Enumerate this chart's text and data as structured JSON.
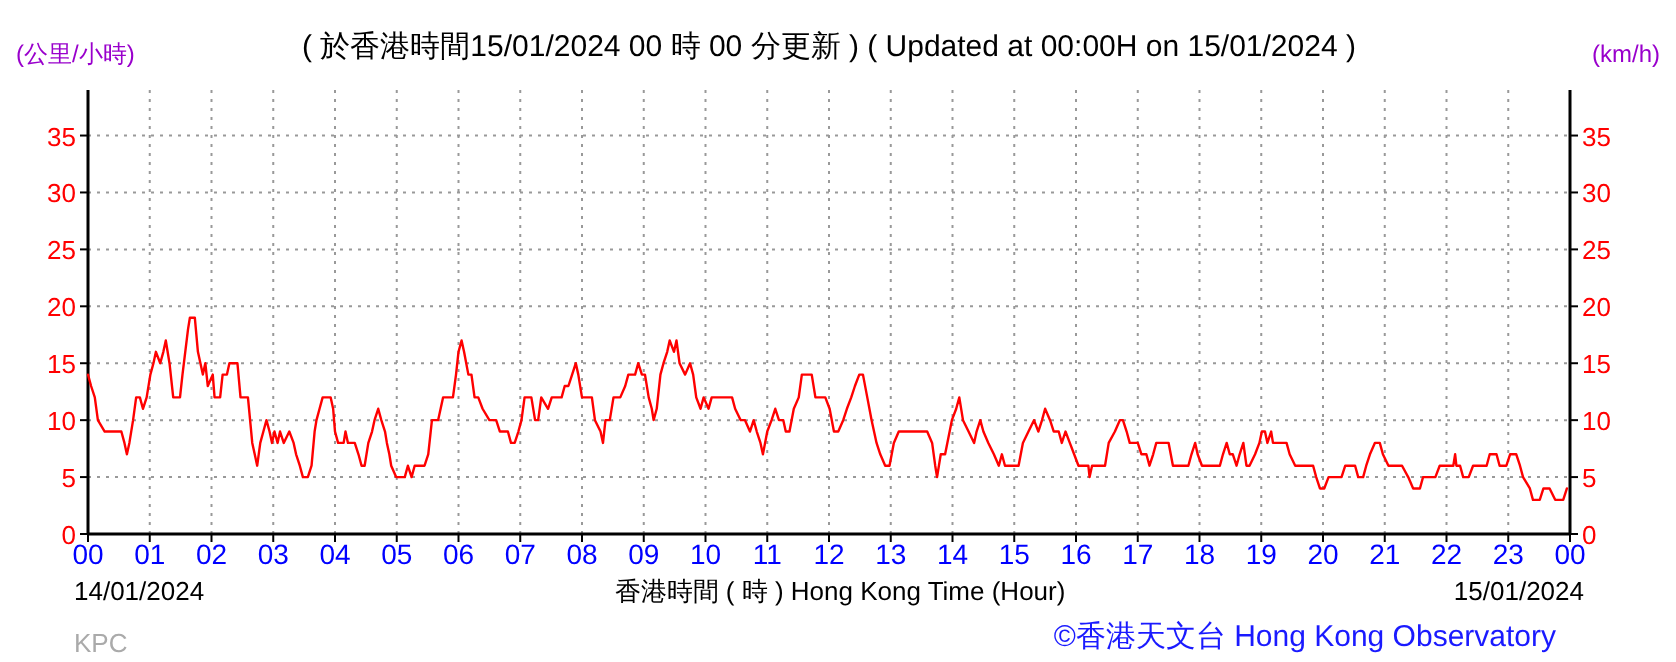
{
  "chart_data": {
    "type": "line",
    "title": "( 於香港時間15/01/2024 00 時 00 分更新 ) ( Updated at 00:00H on 15/01/2024 )",
    "xlabel": "香港時間 ( 時 ) Hong Kong Time (Hour)",
    "ylabel": "(公里/小時)",
    "y2label": "(km/h)",
    "annotations": [
      "14/01/2024",
      "15/01/2024",
      "KPC",
      "©香港天文台 Hong Kong Observatory"
    ],
    "xlim": [
      0,
      24
    ],
    "ylim": [
      0,
      39
    ],
    "y2lim": [
      0,
      39
    ],
    "xticks": [
      {
        "value": 0,
        "label": "00"
      },
      {
        "value": 1,
        "label": "01"
      },
      {
        "value": 2,
        "label": "02"
      },
      {
        "value": 3,
        "label": "03"
      },
      {
        "value": 4,
        "label": "04"
      },
      {
        "value": 5,
        "label": "05"
      },
      {
        "value": 6,
        "label": "06"
      },
      {
        "value": 7,
        "label": "07"
      },
      {
        "value": 8,
        "label": "08"
      },
      {
        "value": 9,
        "label": "09"
      },
      {
        "value": 10,
        "label": "10"
      },
      {
        "value": 11,
        "label": "11"
      },
      {
        "value": 12,
        "label": "12"
      },
      {
        "value": 13,
        "label": "13"
      },
      {
        "value": 14,
        "label": "14"
      },
      {
        "value": 15,
        "label": "15"
      },
      {
        "value": 16,
        "label": "16"
      },
      {
        "value": 17,
        "label": "17"
      },
      {
        "value": 18,
        "label": "18"
      },
      {
        "value": 19,
        "label": "19"
      },
      {
        "value": 20,
        "label": "20"
      },
      {
        "value": 21,
        "label": "21"
      },
      {
        "value": 22,
        "label": "22"
      },
      {
        "value": 23,
        "label": "23"
      },
      {
        "value": 24,
        "label": "00"
      }
    ],
    "yticks": [
      0,
      5,
      10,
      15,
      20,
      25,
      30,
      35
    ],
    "y2ticks": [
      0,
      5,
      10,
      15,
      20,
      25,
      30,
      35
    ],
    "grid": true,
    "series": [
      {
        "color": "#ff0000",
        "x": [
          0,
          0.05,
          0.11,
          0.16,
          0.27,
          0.54,
          0.59,
          0.63,
          0.67,
          0.73,
          0.78,
          0.84,
          0.89,
          0.95,
          1.01,
          1.06,
          1.1,
          1.17,
          1.22,
          1.26,
          1.32,
          1.38,
          1.49,
          1.53,
          1.62,
          1.65,
          1.73,
          1.78,
          1.86,
          1.9,
          1.94,
          2.02,
          2.05,
          2.14,
          2.18,
          2.25,
          2.29,
          2.42,
          2.47,
          2.59,
          2.66,
          2.7,
          2.74,
          2.79,
          2.84,
          2.89,
          2.94,
          2.98,
          3.02,
          3.07,
          3.11,
          3.17,
          3.26,
          3.33,
          3.37,
          3.43,
          3.48,
          3.56,
          3.62,
          3.67,
          3.7,
          3.75,
          3.8,
          3.93,
          3.97,
          4.0,
          4.05,
          4.14,
          4.17,
          4.21,
          4.32,
          4.38,
          4.43,
          4.48,
          4.54,
          4.6,
          4.64,
          4.7,
          4.75,
          4.81,
          4.84,
          4.88,
          4.91,
          4.99,
          5.13,
          5.18,
          5.24,
          5.29,
          5.45,
          5.51,
          5.57,
          5.67,
          5.75,
          5.91,
          5.96,
          6.0,
          6.05,
          6.09,
          6.16,
          6.21,
          6.26,
          6.32,
          6.39,
          6.5,
          6.61,
          6.67,
          6.8,
          6.85,
          6.91,
          6.97,
          7.02,
          7.07,
          7.18,
          7.24,
          7.29,
          7.34,
          7.45,
          7.51,
          7.67,
          7.72,
          7.78,
          7.84,
          7.9,
          7.94,
          8.0,
          8.16,
          8.21,
          8.3,
          8.34,
          8.38,
          8.45,
          8.51,
          8.62,
          8.7,
          8.75,
          8.86,
          8.91,
          8.97,
          9.02,
          9.08,
          9.13,
          9.16,
          9.21,
          9.27,
          9.32,
          9.38,
          9.42,
          9.49,
          9.53,
          9.58,
          9.67,
          9.75,
          9.8,
          9.85,
          9.92,
          9.97,
          10.05,
          10.1,
          10.43,
          10.48,
          10.57,
          10.64,
          10.72,
          10.78,
          10.83,
          10.89,
          10.93,
          11.0,
          11.07,
          11.13,
          11.19,
          11.26,
          11.3,
          11.36,
          11.43,
          11.51,
          11.56,
          11.72,
          11.78,
          11.94,
          12.01,
          12.08,
          12.15,
          12.23,
          12.29,
          12.36,
          12.42,
          12.49,
          12.55,
          12.62,
          12.69,
          12.77,
          12.83,
          12.91,
          12.98,
          13.05,
          13.13,
          13.59,
          13.67,
          13.72,
          13.75,
          13.81,
          13.88,
          13.99,
          14.06,
          14.11,
          14.17,
          14.26,
          14.35,
          14.39,
          14.45,
          14.5,
          14.58,
          14.67,
          14.75,
          14.8,
          14.85,
          15.07,
          15.14,
          15.23,
          15.32,
          15.39,
          15.45,
          15.5,
          15.58,
          15.64,
          15.72,
          15.77,
          15.83,
          15.9,
          15.97,
          16.04,
          16.2,
          16.22,
          16.26,
          16.47,
          16.53,
          16.63,
          16.71,
          16.76,
          16.82,
          16.87,
          17.0,
          17.06,
          17.14,
          17.19,
          17.25,
          17.3,
          17.5,
          17.57,
          17.82,
          17.87,
          17.93,
          17.97,
          18.04,
          18.33,
          18.38,
          18.44,
          18.49,
          18.54,
          18.6,
          18.65,
          18.71,
          18.76,
          18.81,
          18.9,
          18.97,
          19.01,
          19.06,
          19.1,
          19.16,
          19.19,
          19.41,
          19.46,
          19.55,
          19.84,
          19.89,
          19.95,
          20.02,
          20.09,
          20.3,
          20.36,
          20.52,
          20.57,
          20.65,
          20.7,
          20.76,
          20.84,
          20.92,
          20.97,
          21.06,
          21.28,
          21.38,
          21.46,
          21.57,
          21.62,
          21.82,
          21.89,
          22.11,
          22.14,
          22.16,
          22.22,
          22.27,
          22.36,
          22.43,
          22.65,
          22.7,
          22.81,
          22.86,
          22.97,
          23.03,
          23.13,
          23.19,
          23.24,
          23.35,
          23.4,
          23.51,
          23.57,
          23.67,
          23.76,
          23.89,
          23.95
        ],
        "values": [
          14,
          13,
          12,
          10,
          9,
          9,
          8,
          7,
          8,
          10,
          12,
          12,
          11,
          12,
          14,
          15,
          16,
          15,
          16,
          17,
          15,
          12,
          12,
          14,
          18,
          19,
          19,
          16,
          14,
          15,
          13,
          14,
          12,
          12,
          14,
          14,
          15,
          15,
          12,
          12,
          8,
          7,
          6,
          8,
          9,
          10,
          9,
          8,
          9,
          8,
          9,
          8,
          9,
          8,
          7,
          6,
          5,
          5,
          6,
          9,
          10,
          11,
          12,
          12,
          11,
          9,
          8,
          8,
          9,
          8,
          8,
          7,
          6,
          6,
          8,
          9,
          10,
          11,
          10,
          9,
          8,
          7,
          6,
          5,
          5,
          6,
          5,
          6,
          6,
          7,
          10,
          10,
          12,
          12,
          14,
          16,
          17,
          16,
          14,
          14,
          12,
          12,
          11,
          10,
          10,
          9,
          9,
          8,
          8,
          9,
          10,
          12,
          12,
          10,
          10,
          12,
          11,
          12,
          12,
          13,
          13,
          14,
          15,
          14,
          12,
          12,
          10,
          9,
          8,
          10,
          10,
          12,
          12,
          13,
          14,
          14,
          15,
          14,
          14,
          12,
          11,
          10,
          11,
          14,
          15,
          16,
          17,
          16,
          17,
          15,
          14,
          15,
          14,
          12,
          11,
          12,
          11,
          12,
          12,
          11,
          10,
          10,
          9,
          10,
          9,
          8,
          7,
          9,
          10,
          11,
          10,
          10,
          9,
          9,
          11,
          12,
          14,
          14,
          12,
          12,
          11,
          9,
          9,
          10,
          11,
          12,
          13,
          14,
          14,
          12,
          10,
          8,
          7,
          6,
          6,
          8,
          9,
          9,
          8,
          6,
          5,
          7,
          7,
          10,
          11,
          12,
          10,
          9,
          8,
          9,
          10,
          9,
          8,
          7,
          6,
          7,
          6,
          6,
          8,
          9,
          10,
          9,
          10,
          11,
          10,
          9,
          9,
          8,
          9,
          8,
          7,
          6,
          6,
          5,
          6,
          6,
          8,
          9,
          10,
          10,
          9,
          8,
          8,
          7,
          7,
          6,
          7,
          8,
          8,
          6,
          6,
          7,
          8,
          7,
          6,
          6,
          7,
          8,
          7,
          7,
          6,
          7,
          8,
          6,
          6,
          7,
          8,
          9,
          9,
          8,
          9,
          8,
          8,
          7,
          6,
          6,
          5,
          4,
          4,
          5,
          5,
          6,
          6,
          5,
          5,
          6,
          7,
          8,
          8,
          7,
          6,
          6,
          5,
          4,
          4,
          5,
          5,
          6,
          6,
          7,
          6,
          6,
          5,
          5,
          6,
          6,
          7,
          7,
          6,
          6,
          7,
          7,
          6,
          5,
          4,
          3,
          3,
          4,
          4,
          3,
          3,
          4
        ]
      }
    ]
  }
}
